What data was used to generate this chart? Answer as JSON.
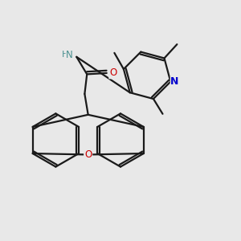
{
  "bg_color": "#e8e8e8",
  "bond_color": "#1a1a1a",
  "N_color": "#0000cc",
  "NH_color": "#4a9090",
  "O_color": "#cc0000",
  "lw": 1.6,
  "figsize": [
    3.0,
    3.0
  ],
  "dpi": 100,
  "xlim": [
    0.0,
    1.0
  ],
  "ylim": [
    0.0,
    1.0
  ]
}
